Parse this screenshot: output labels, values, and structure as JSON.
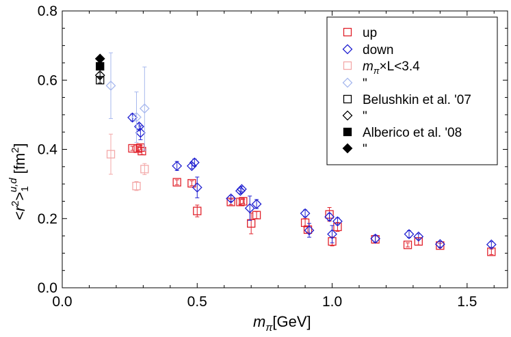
{
  "chart_data": {
    "type": "scatter",
    "title": "",
    "xlabel": "m_π[GeV]",
    "ylabel": "<r²>₁^{u,d} [fm²]",
    "xlabel_parts": {
      "symbol": "m",
      "subscript": "π",
      "unit": "[GeV]"
    },
    "ylabel_parts": {
      "open": "<",
      "base": "r",
      "power": "2",
      "bracket": ">",
      "sub": "1",
      "sup": "u,d",
      "unit": "[fm",
      "unit_pow": "2",
      "unit_close": "]"
    },
    "xlim": [
      0.0,
      1.65
    ],
    "ylim": [
      0.0,
      0.8
    ],
    "x_ticks": [
      "0.0",
      "0.5",
      "1.0",
      "1.5"
    ],
    "y_ticks": [
      "0.0",
      "0.2",
      "0.4",
      "0.6",
      "0.8"
    ],
    "x_tick_values": [
      0.0,
      0.5,
      1.0,
      1.5
    ],
    "y_tick_values": [
      0.0,
      0.2,
      0.4,
      0.6,
      0.8
    ],
    "legend_position": "top-right",
    "colors": {
      "up": "#e0202a",
      "down": "#1f1fd0",
      "up_light": "#f3a8a8",
      "down_light": "#a7b8ee",
      "black": "#000000",
      "axis": "#000000"
    },
    "legend": [
      {
        "label": "up",
        "marker": "square-open",
        "color": "up"
      },
      {
        "label": "down",
        "marker": "diamond-open",
        "color": "down"
      },
      {
        "label": "×L<3.4",
        "label_prefix": "m",
        "label_sub": "π",
        "marker": "square-open",
        "color": "up_light"
      },
      {
        "label": "\"",
        "marker": "diamond-open",
        "color": "down_light"
      },
      {
        "label": "Belushkin et al. '07",
        "marker": "square-open",
        "color": "black"
      },
      {
        "label": "\"",
        "marker": "diamond-open",
        "color": "black"
      },
      {
        "label": "Alberico et al. '08",
        "marker": "square-filled",
        "color": "black"
      },
      {
        "label": "\"",
        "marker": "diamond-filled",
        "color": "black"
      }
    ],
    "series": [
      {
        "name": "up",
        "marker": "square-open",
        "color": "up",
        "points": [
          {
            "x": 0.26,
            "y": 0.403,
            "err": 0.006
          },
          {
            "x": 0.28,
            "y": 0.402,
            "err": 0.006
          },
          {
            "x": 0.29,
            "y": 0.405,
            "err": 0.006
          },
          {
            "x": 0.295,
            "y": 0.395,
            "err": 0.01
          },
          {
            "x": 0.425,
            "y": 0.305,
            "err": 0.007
          },
          {
            "x": 0.48,
            "y": 0.302,
            "err": 0.007
          },
          {
            "x": 0.5,
            "y": 0.222,
            "err": 0.017
          },
          {
            "x": 0.625,
            "y": 0.248,
            "err": 0.008
          },
          {
            "x": 0.66,
            "y": 0.248,
            "err": 0.007
          },
          {
            "x": 0.67,
            "y": 0.25,
            "err": 0.006
          },
          {
            "x": 0.7,
            "y": 0.186,
            "err": 0.03
          },
          {
            "x": 0.72,
            "y": 0.21,
            "err": 0.01
          },
          {
            "x": 0.9,
            "y": 0.188,
            "err": 0.012
          },
          {
            "x": 0.91,
            "y": 0.168,
            "err": 0.008
          },
          {
            "x": 0.99,
            "y": 0.212,
            "err": 0.02
          },
          {
            "x": 1.0,
            "y": 0.134,
            "err": 0.013
          },
          {
            "x": 1.02,
            "y": 0.176,
            "err": 0.013
          },
          {
            "x": 1.16,
            "y": 0.14,
            "err": 0.01
          },
          {
            "x": 1.28,
            "y": 0.124,
            "err": 0.006
          },
          {
            "x": 1.32,
            "y": 0.134,
            "err": 0.01
          },
          {
            "x": 1.4,
            "y": 0.122,
            "err": 0.006
          },
          {
            "x": 1.59,
            "y": 0.104,
            "err": 0.008
          }
        ]
      },
      {
        "name": "down",
        "marker": "diamond-open",
        "color": "down",
        "points": [
          {
            "x": 0.26,
            "y": 0.492,
            "err": 0.01
          },
          {
            "x": 0.285,
            "y": 0.466,
            "err": 0.008
          },
          {
            "x": 0.29,
            "y": 0.448,
            "err": 0.02
          },
          {
            "x": 0.425,
            "y": 0.352,
            "err": 0.013
          },
          {
            "x": 0.48,
            "y": 0.352,
            "err": 0.008
          },
          {
            "x": 0.49,
            "y": 0.362,
            "err": 0.01
          },
          {
            "x": 0.5,
            "y": 0.29,
            "err": 0.03
          },
          {
            "x": 0.625,
            "y": 0.258,
            "err": 0.008
          },
          {
            "x": 0.66,
            "y": 0.28,
            "err": 0.008
          },
          {
            "x": 0.665,
            "y": 0.285,
            "err": 0.008
          },
          {
            "x": 0.695,
            "y": 0.23,
            "err": 0.035
          },
          {
            "x": 0.72,
            "y": 0.242,
            "err": 0.013
          },
          {
            "x": 0.9,
            "y": 0.215,
            "err": 0.01
          },
          {
            "x": 0.915,
            "y": 0.166,
            "err": 0.02
          },
          {
            "x": 0.99,
            "y": 0.205,
            "err": 0.01
          },
          {
            "x": 1.0,
            "y": 0.155,
            "err": 0.025
          },
          {
            "x": 1.02,
            "y": 0.192,
            "err": 0.01
          },
          {
            "x": 1.16,
            "y": 0.142,
            "err": 0.01
          },
          {
            "x": 1.285,
            "y": 0.155,
            "err": 0.01
          },
          {
            "x": 1.32,
            "y": 0.148,
            "err": 0.008
          },
          {
            "x": 1.4,
            "y": 0.126,
            "err": 0.008
          },
          {
            "x": 1.59,
            "y": 0.125,
            "err": 0.008
          }
        ]
      },
      {
        "name": "m_π×L<3.4 (up)",
        "marker": "square-open",
        "color": "up_light",
        "points": [
          {
            "x": 0.18,
            "y": 0.386,
            "err": 0.058
          },
          {
            "x": 0.275,
            "y": 0.294,
            "err": 0.013
          },
          {
            "x": 0.305,
            "y": 0.343,
            "err": 0.016
          }
        ]
      },
      {
        "name": "m_π×L<3.4 (down)",
        "marker": "diamond-open",
        "color": "down_light",
        "points": [
          {
            "x": 0.18,
            "y": 0.584,
            "err": 0.095
          },
          {
            "x": 0.275,
            "y": 0.493,
            "err": 0.073
          },
          {
            "x": 0.305,
            "y": 0.518,
            "err": 0.12
          }
        ]
      },
      {
        "name": "Belushkin et al. '07 (up)",
        "marker": "square-open",
        "color": "black",
        "points": [
          {
            "x": 0.14,
            "y": 0.6,
            "err": 0.008
          }
        ]
      },
      {
        "name": "Belushkin et al. '07 (down)",
        "marker": "diamond-open",
        "color": "black",
        "points": [
          {
            "x": 0.14,
            "y": 0.614,
            "err": 0.008
          }
        ]
      },
      {
        "name": "Alberico et al. '08 (up)",
        "marker": "square-filled",
        "color": "black",
        "points": [
          {
            "x": 0.14,
            "y": 0.64,
            "err": 0
          }
        ]
      },
      {
        "name": "Alberico et al. '08 (down)",
        "marker": "diamond-filled",
        "color": "black",
        "points": [
          {
            "x": 0.14,
            "y": 0.662,
            "err": 0
          }
        ]
      }
    ]
  }
}
